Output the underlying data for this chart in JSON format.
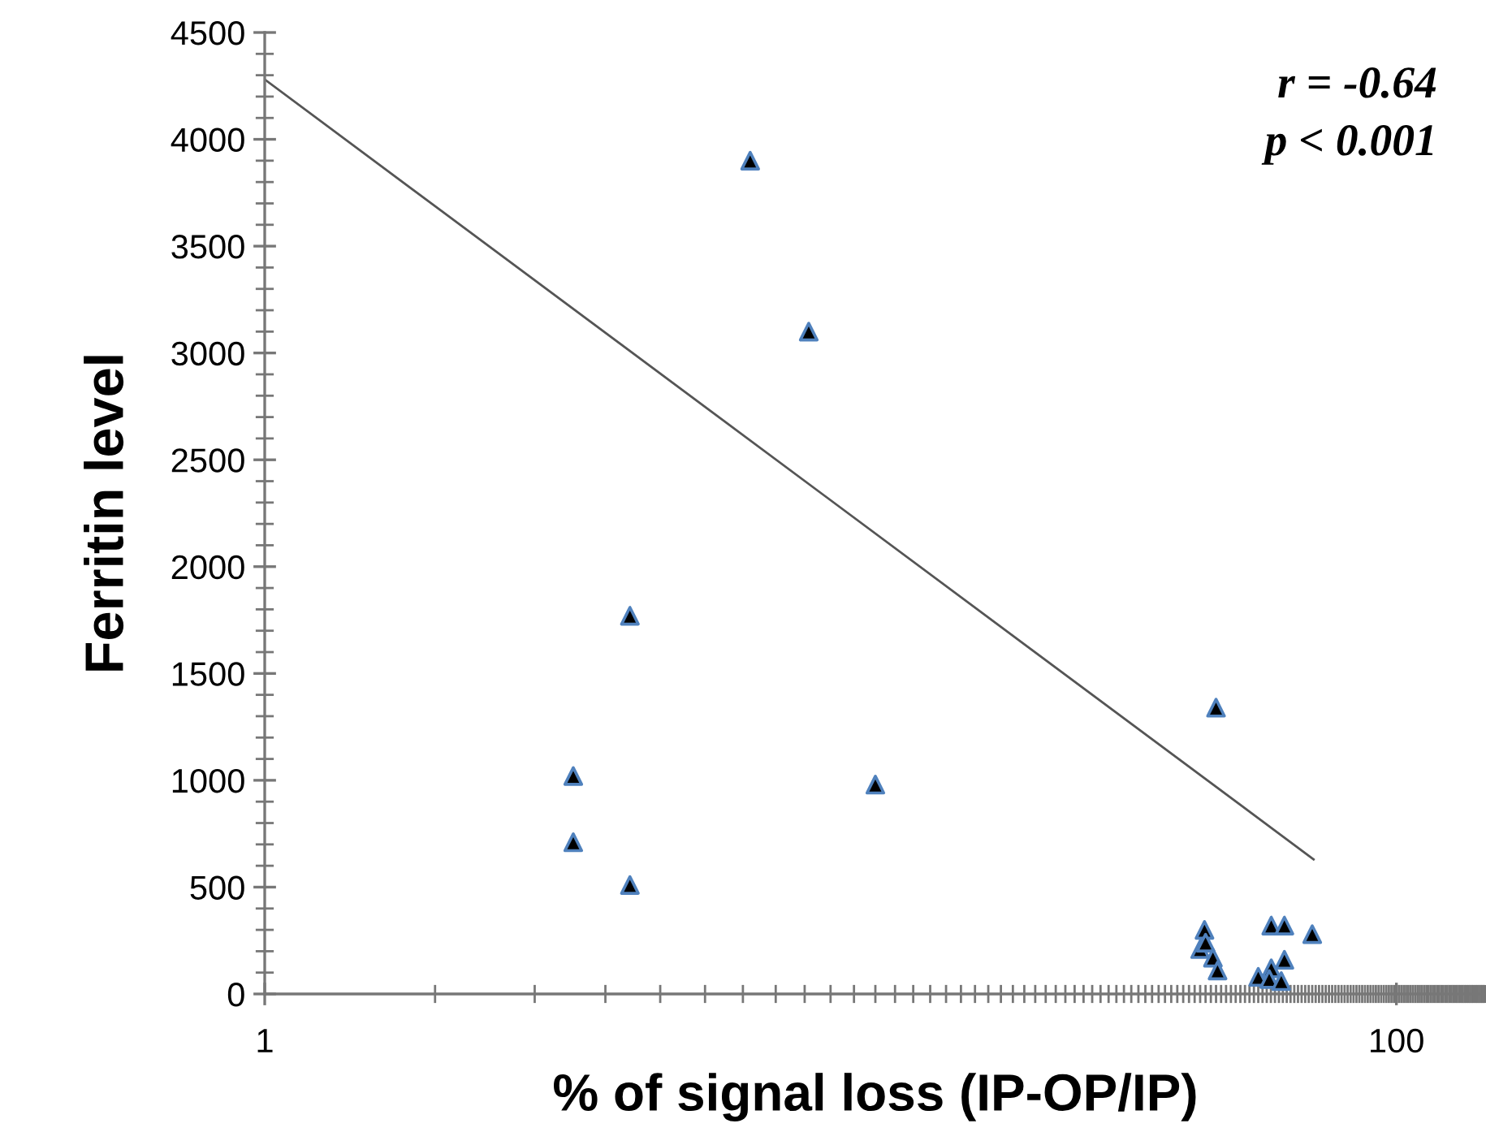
{
  "chart_data": {
    "type": "scatter",
    "xlabel": "% of signal loss (IP-OP/IP)",
    "ylabel": "Ferritin level",
    "log": "x",
    "xlim": [
      1,
      144
    ],
    "xticks": [
      1,
      100
    ],
    "ylim": [
      0,
      4500
    ],
    "yticks": [
      0,
      500,
      1000,
      1500,
      2000,
      2500,
      3000,
      3500,
      4000,
      4500
    ],
    "grid": false,
    "legend": false,
    "marker": "triangle",
    "series": [
      {
        "color": "#4f81bd",
        "x": [
          7.21,
          9.15,
          4.42,
          3.51,
          3.51,
          4.42,
          12.0,
          48.0,
          45.8,
          45.0,
          46.0,
          47.4,
          48.3,
          60.1,
          63.4,
          71.0,
          63.4,
          60.1,
          57.0,
          59.6,
          62.6
        ],
        "values": [
          3900,
          3100,
          1770,
          1020,
          710,
          510,
          980,
          1340,
          300,
          210,
          240,
          170,
          110,
          320,
          320,
          280,
          160,
          120,
          80,
          70,
          60
        ]
      },
      {
        "type": "line",
        "color": "#555555",
        "line_style": "solid",
        "marker": "none",
        "x": [
          1,
          71.4
        ],
        "values": [
          4280,
          630
        ]
      }
    ],
    "annotations": [
      "r = -0.64",
      "p < 0.001"
    ]
  }
}
